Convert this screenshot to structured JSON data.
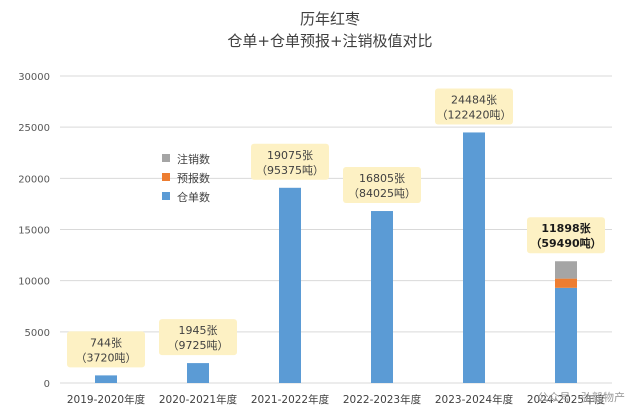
{
  "chart_data": {
    "type": "bar",
    "stacked": true,
    "title": "历年红枣",
    "subtitle": "仓单+仓单预报+注销极值对比",
    "categories": [
      "2019-2020年度",
      "2020-2021年度",
      "2021-2022年度",
      "2022-2023年度",
      "2023-2024年度",
      "2024-2025年度"
    ],
    "series": [
      {
        "name": "仓单数",
        "color": "#5b9bd5",
        "values": [
          744,
          1945,
          19075,
          16805,
          24484,
          9300
        ]
      },
      {
        "name": "预报数",
        "color": "#ed7d31",
        "values": [
          0,
          0,
          0,
          0,
          0,
          900
        ]
      },
      {
        "name": "注销数",
        "color": "#a5a5a5",
        "values": [
          0,
          0,
          0,
          0,
          0,
          1698
        ]
      }
    ],
    "annotations": [
      {
        "line1": "744张",
        "line2": "（3720吨）",
        "bold": false
      },
      {
        "line1": "1945张",
        "line2": "（9725吨）",
        "bold": false
      },
      {
        "line1": "19075张",
        "line2": "（95375吨）",
        "bold": false
      },
      {
        "line1": "16805张",
        "line2": "（84025吨）",
        "bold": false
      },
      {
        "line1": "24484张",
        "line2": "（122420吨）",
        "bold": false
      },
      {
        "line1": "11898张",
        "line2": "（59490吨）",
        "bold": true
      }
    ],
    "ylim": [
      0,
      30000
    ],
    "yticks": [
      0,
      5000,
      10000,
      15000,
      20000,
      25000,
      30000
    ],
    "grid": true,
    "legend_position": "left",
    "legend_order": [
      "注销数",
      "预报数",
      "仓单数"
    ],
    "xlabel": "",
    "ylabel": ""
  },
  "watermark": "公众号 · 弘毅物产",
  "colors": {
    "annotation_bg": "#fdf1c4",
    "gridline": "#d9d9d9"
  }
}
